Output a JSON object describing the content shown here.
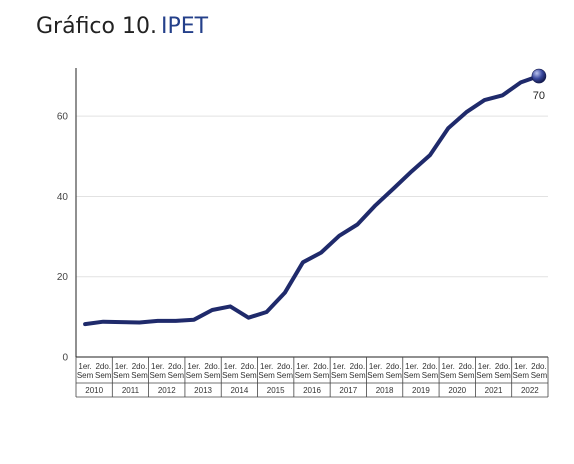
{
  "title": {
    "prefix": "Gráfico 10.",
    "name": "IPET"
  },
  "colors": {
    "line": "#1f2a6b",
    "title_accent": "#24408a",
    "grid": "#e2e2e2"
  },
  "chart_data": {
    "type": "line",
    "title": "Gráfico 10. IPET",
    "xlabel": "",
    "ylabel": "",
    "ylim": [
      0,
      72
    ],
    "yticks": [
      0,
      20,
      40,
      60
    ],
    "grid": true,
    "semester_labels": [
      "1er. Sem",
      "2do. Sem"
    ],
    "years": [
      "2010",
      "2011",
      "2012",
      "2013",
      "2014",
      "2015",
      "2016",
      "2017",
      "2018",
      "2019",
      "2020",
      "2021",
      "2022"
    ],
    "categories": [
      "2010 1er. Sem",
      "2010 2do. Sem",
      "2011 1er. Sem",
      "2011 2do. Sem",
      "2012 1er. Sem",
      "2012 2do. Sem",
      "2013 1er. Sem",
      "2013 2do. Sem",
      "2014 1er. Sem",
      "2014 2do. Sem",
      "2015 1er. Sem",
      "2015 2do. Sem",
      "2016 1er. Sem",
      "2016 2do. Sem",
      "2017 1er. Sem",
      "2017 2do. Sem",
      "2018 1er. Sem",
      "2018 2do. Sem",
      "2019 1er. Sem",
      "2019 2do. Sem",
      "2020 1er. Sem",
      "2020 2do. Sem",
      "2021 1er. Sem",
      "2021 2do. Sem",
      "2022 1er. Sem",
      "2022 2do. Sem"
    ],
    "series": [
      {
        "values": [
          8.2,
          8.8,
          8.7,
          8.6,
          9.0,
          9.0,
          9.3,
          11.7,
          12.6,
          9.8,
          11.2,
          16.0,
          23.6,
          26.0,
          30.2,
          33.0,
          37.8,
          42.0,
          46.3,
          50.3,
          57.0,
          61.0,
          64.0,
          65.2,
          68.4,
          70.0
        ]
      }
    ],
    "data_labels": [
      {
        "index": 25,
        "text": "70"
      }
    ]
  }
}
